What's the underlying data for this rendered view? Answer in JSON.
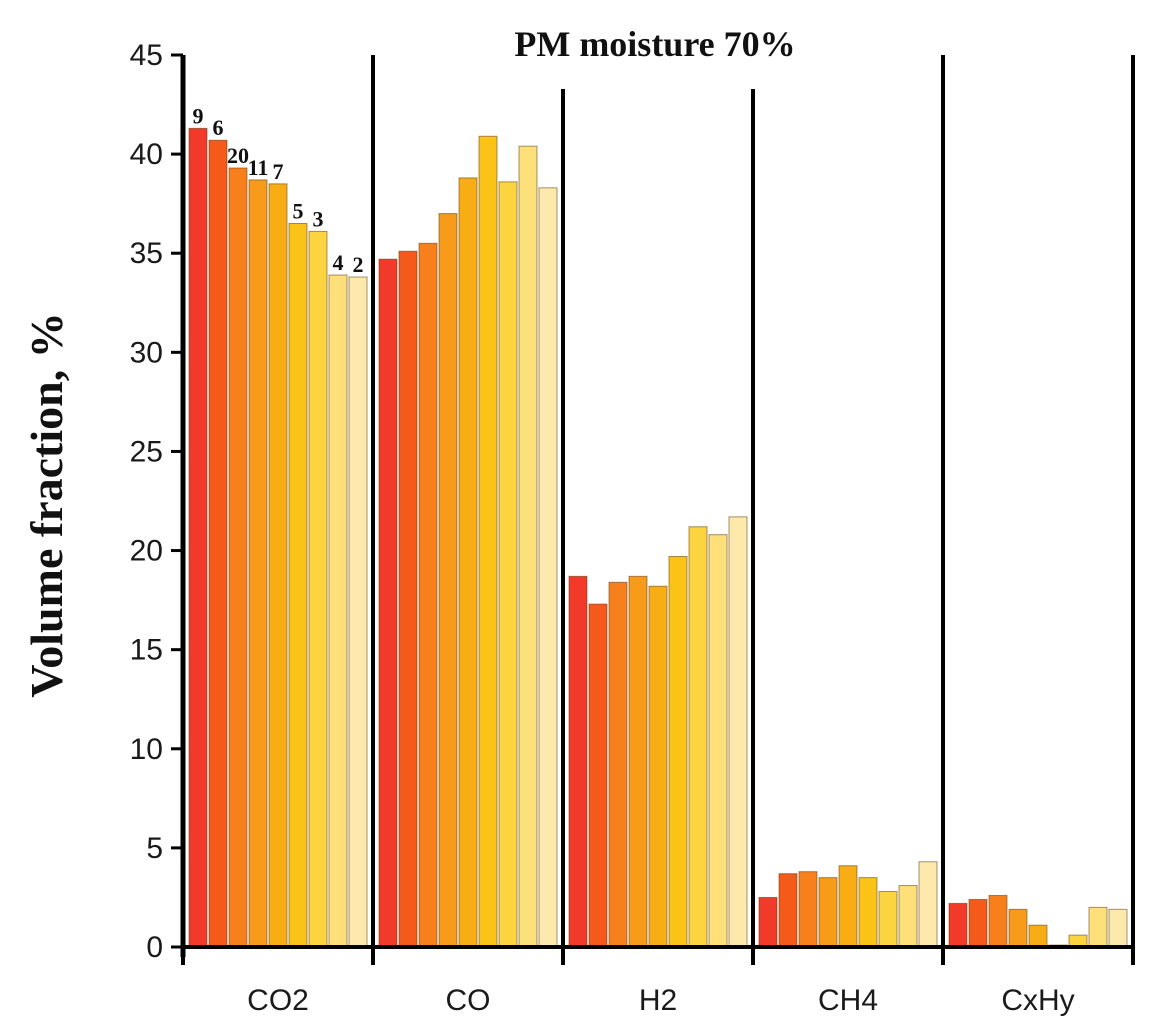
{
  "chart_data": {
    "type": "bar",
    "title": "PM moisture 70%",
    "xlabel": "",
    "ylabel": "Volume fraction, %",
    "ylim": [
      0,
      45
    ],
    "yticks": [
      "0",
      "5",
      "10",
      "15",
      "20",
      "25",
      "30",
      "35",
      "40",
      "45"
    ],
    "categories": [
      "CO2",
      "CO",
      "H2",
      "CH4",
      "CxHy"
    ],
    "series": [
      {
        "name": "9",
        "color": "#f23a2a",
        "values": [
          41.3,
          34.7,
          18.7,
          2.5,
          2.2
        ]
      },
      {
        "name": "6",
        "color": "#f55a1a",
        "values": [
          40.7,
          35.1,
          17.3,
          3.7,
          2.4
        ]
      },
      {
        "name": "20",
        "color": "#f7801c",
        "values": [
          39.3,
          35.5,
          18.4,
          3.8,
          2.6
        ]
      },
      {
        "name": "11",
        "color": "#f89a1a",
        "values": [
          38.7,
          37.0,
          18.7,
          3.5,
          1.9
        ]
      },
      {
        "name": "7",
        "color": "#f9ad14",
        "values": [
          38.5,
          38.8,
          18.2,
          4.1,
          1.1
        ]
      },
      {
        "name": "5",
        "color": "#fbc318",
        "values": [
          36.5,
          40.9,
          19.7,
          3.5,
          0.1
        ]
      },
      {
        "name": "3",
        "color": "#fcd440",
        "values": [
          36.1,
          38.6,
          21.2,
          2.8,
          0.6
        ]
      },
      {
        "name": "4",
        "color": "#fde07a",
        "values": [
          33.9,
          40.4,
          20.8,
          3.1,
          2.0
        ]
      },
      {
        "name": "2",
        "color": "#fde9ac",
        "values": [
          33.8,
          38.3,
          21.7,
          4.3,
          1.9
        ]
      }
    ],
    "grid": false,
    "legend": "none",
    "label_category": "CO2"
  }
}
